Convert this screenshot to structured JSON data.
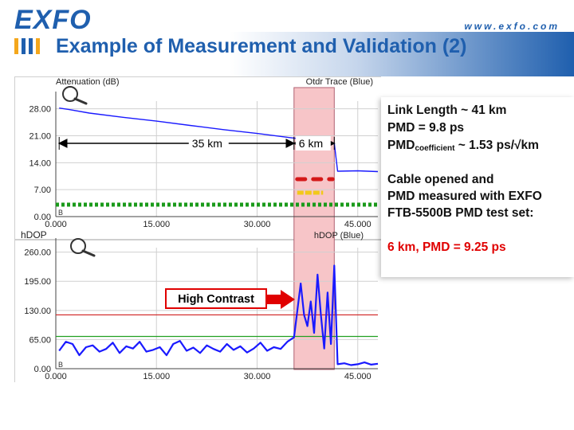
{
  "header": {
    "logo": "EXFO",
    "url": "www.exfo.com",
    "title": "Example of Measurement and Validation (2)"
  },
  "colors": {
    "brand": "#1f5fae",
    "trace": "#1a1aff",
    "highlight": "#f7c5c8",
    "callout": "#e00000",
    "green": "#1a9a1a"
  },
  "chart_data": [
    {
      "type": "line",
      "title": "Attenuation (dB)",
      "legend": "Otdr Trace (Blue)",
      "xlabel": "",
      "ylabel": "Attenuation (dB)",
      "xlim": [
        0,
        48
      ],
      "ylim": [
        0,
        30
      ],
      "y_ticks": [
        "28.00",
        "21.00",
        "14.00",
        "7.00",
        "0.00"
      ],
      "x_ticks": [
        "0.000",
        "15.000",
        "30.000",
        "45.000"
      ],
      "series": [
        {
          "name": "Otdr Trace (Blue)",
          "x": [
            0.5,
            2,
            5,
            10,
            15,
            20,
            25,
            30,
            35,
            40,
            41.5,
            42,
            45,
            48
          ],
          "y": [
            28.2,
            27.8,
            26.9,
            25.8,
            24.8,
            23.7,
            22.6,
            21.6,
            20.5,
            19.4,
            19.1,
            11.8,
            11.9,
            11.7
          ]
        }
      ],
      "markers": [
        {
          "label": "35 km",
          "from": 0.5,
          "to": 35.5
        },
        {
          "label": "6 km",
          "from": 35.5,
          "to": 41.5
        }
      ],
      "annotations": [
        "B"
      ]
    },
    {
      "type": "line",
      "title": "hDOP",
      "legend": "hDOP (Blue)",
      "xlabel": "",
      "ylabel": "hDOP",
      "xlim": [
        0,
        48
      ],
      "ylim": [
        0,
        270
      ],
      "y_ticks": [
        "260.00",
        "195.00",
        "130.00",
        "65.00",
        "0.00"
      ],
      "x_ticks": [
        "0.000",
        "15.000",
        "30.000",
        "45.000"
      ],
      "series": [
        {
          "name": "hDOP (Blue)",
          "x": [
            0.5,
            1.5,
            2.5,
            3.5,
            4.5,
            5.5,
            6.5,
            7.5,
            8.5,
            9.5,
            10.5,
            11.5,
            12.5,
            13.5,
            14.5,
            15.5,
            16.5,
            17.5,
            18.5,
            19.5,
            20.5,
            21.5,
            22.5,
            23.5,
            24.5,
            25.5,
            26.5,
            27.5,
            28.5,
            29.5,
            30.5,
            31.5,
            32.5,
            33.5,
            34.5,
            35.5,
            36.5,
            37,
            37.5,
            38,
            38.5,
            39,
            39.5,
            40,
            40.5,
            41,
            41.5,
            42,
            43,
            44,
            45,
            46,
            47,
            48
          ],
          "y": [
            40,
            60,
            55,
            30,
            48,
            52,
            38,
            44,
            58,
            35,
            50,
            45,
            60,
            38,
            42,
            48,
            30,
            55,
            62,
            40,
            47,
            35,
            52,
            44,
            38,
            55,
            42,
            50,
            36,
            45,
            58,
            40,
            48,
            44,
            60,
            70,
            190,
            120,
            95,
            150,
            80,
            210,
            120,
            45,
            170,
            55,
            230,
            10,
            12,
            8,
            10,
            14,
            9,
            11
          ]
        }
      ],
      "reference_lines": [
        120,
        72
      ],
      "callout": "High Contrast",
      "annotations": [
        "B"
      ]
    }
  ],
  "side": {
    "l1": "Link Length ~ 41 km",
    "l2": "PMD = 9.8 ps",
    "l3_main": "PMD",
    "l3_sub": "coefficient",
    "l3_rest": " ~ 1.53 ps/√km",
    "l4": "Cable opened and",
    "l5": "PMD measured with EXFO",
    "l6": "FTB-5500B PMD test set:",
    "l7": "6 km, PMD = 9.25 ps"
  }
}
